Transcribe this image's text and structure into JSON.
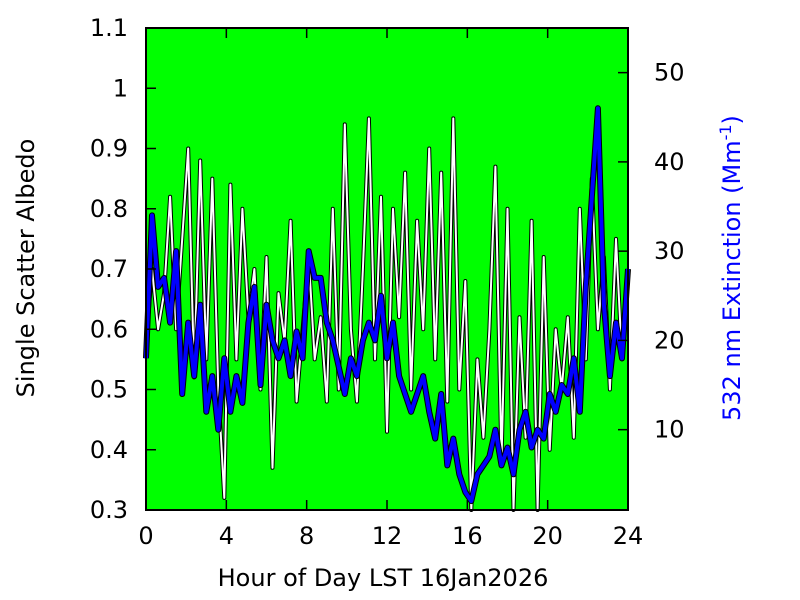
{
  "chart_data": {
    "type": "line",
    "xlabel": "Hour of Day LST 16Jan2026",
    "ylabel": "Single Scatter Albedo",
    "y2label_main": "532 nm Extinction (Mm",
    "y2label_sup": "-1",
    "y2label_close": ")",
    "xlim": [
      0,
      24
    ],
    "ylim": [
      0.3,
      1.1
    ],
    "y2lim": [
      1.0,
      55.0
    ],
    "x_ticks": [
      "0",
      "4",
      "8",
      "12",
      "16",
      "20",
      "24"
    ],
    "y_ticks": [
      "0.3",
      "0.4",
      "0.5",
      "0.6",
      "0.7",
      "0.8",
      "0.9",
      "1",
      "1.1"
    ],
    "y2_ticks": [
      "10",
      "20",
      "30",
      "40",
      "50"
    ],
    "plot_background": "#00ff00",
    "grid": false,
    "series": [
      {
        "axis": "left",
        "color": "#ffffff",
        "outline": "#000000",
        "x": [
          0,
          0.3,
          0.6,
          0.9,
          1.2,
          1.5,
          1.8,
          2.1,
          2.4,
          2.7,
          3.0,
          3.3,
          3.6,
          3.9,
          4.2,
          4.5,
          4.8,
          5.1,
          5.4,
          5.7,
          6.0,
          6.3,
          6.6,
          6.9,
          7.2,
          7.5,
          7.8,
          8.1,
          8.4,
          8.7,
          9.0,
          9.3,
          9.6,
          9.9,
          10.2,
          10.5,
          10.8,
          11.1,
          11.4,
          11.7,
          12.0,
          12.3,
          12.6,
          12.9,
          13.2,
          13.5,
          13.8,
          14.1,
          14.4,
          14.7,
          15.0,
          15.3,
          15.6,
          15.9,
          16.2,
          16.5,
          16.8,
          17.1,
          17.4,
          17.7,
          18.0,
          18.3,
          18.6,
          18.9,
          19.2,
          19.5,
          19.8,
          20.1,
          20.4,
          20.7,
          21.0,
          21.3,
          21.6,
          21.9,
          22.2,
          22.5,
          22.8,
          23.1,
          23.4,
          23.7,
          24.0
        ],
        "values": [
          0.57,
          0.7,
          0.6,
          0.66,
          0.82,
          0.6,
          0.75,
          0.9,
          0.52,
          0.88,
          0.55,
          0.85,
          0.5,
          0.32,
          0.84,
          0.55,
          0.8,
          0.62,
          0.7,
          0.5,
          0.72,
          0.37,
          0.66,
          0.58,
          0.78,
          0.48,
          0.6,
          0.72,
          0.55,
          0.62,
          0.48,
          0.8,
          0.5,
          0.94,
          0.6,
          0.48,
          0.7,
          0.95,
          0.55,
          0.82,
          0.43,
          0.8,
          0.62,
          0.86,
          0.5,
          0.78,
          0.6,
          0.9,
          0.55,
          0.86,
          0.48,
          0.95,
          0.5,
          0.68,
          0.3,
          0.55,
          0.42,
          0.6,
          0.87,
          0.38,
          0.8,
          0.3,
          0.62,
          0.42,
          0.78,
          0.3,
          0.72,
          0.4,
          0.6,
          0.5,
          0.62,
          0.42,
          0.8,
          0.55,
          0.85,
          0.6,
          0.72,
          0.5,
          0.75,
          0.55,
          0.7
        ]
      },
      {
        "axis": "right",
        "color": "#0000ff",
        "x": [
          0,
          0.3,
          0.6,
          0.9,
          1.2,
          1.5,
          1.8,
          2.1,
          2.4,
          2.7,
          3.0,
          3.3,
          3.6,
          3.9,
          4.2,
          4.5,
          4.8,
          5.1,
          5.4,
          5.7,
          6.0,
          6.3,
          6.6,
          6.9,
          7.2,
          7.5,
          7.8,
          8.1,
          8.4,
          8.7,
          9.0,
          9.3,
          9.6,
          9.9,
          10.2,
          10.5,
          10.8,
          11.1,
          11.4,
          11.7,
          12.0,
          12.3,
          12.6,
          12.9,
          13.2,
          13.5,
          13.8,
          14.1,
          14.4,
          14.7,
          15.0,
          15.3,
          15.6,
          15.9,
          16.2,
          16.5,
          16.8,
          17.1,
          17.4,
          17.7,
          18.0,
          18.3,
          18.6,
          18.9,
          19.2,
          19.5,
          19.8,
          20.1,
          20.4,
          20.7,
          21.0,
          21.3,
          21.6,
          21.9,
          22.2,
          22.5,
          22.8,
          23.1,
          23.4,
          23.7,
          24.0
        ],
        "values": [
          18,
          34,
          26,
          27,
          22,
          30,
          14,
          22,
          16,
          24,
          12,
          16,
          10,
          18,
          12,
          16,
          13,
          22,
          26,
          15,
          24,
          20,
          18,
          20,
          16,
          21,
          18,
          30,
          27,
          27,
          22,
          20,
          17,
          14,
          18,
          16,
          20,
          22,
          20,
          25,
          18,
          22,
          16,
          14,
          12,
          14,
          16,
          12,
          9,
          14,
          6,
          9,
          5,
          3,
          2,
          5,
          6,
          7,
          10,
          6,
          8,
          5,
          10,
          12,
          8,
          10,
          9,
          14,
          12,
          15,
          14,
          18,
          12,
          26,
          36,
          46,
          24,
          16,
          22,
          18,
          28
        ]
      }
    ]
  }
}
